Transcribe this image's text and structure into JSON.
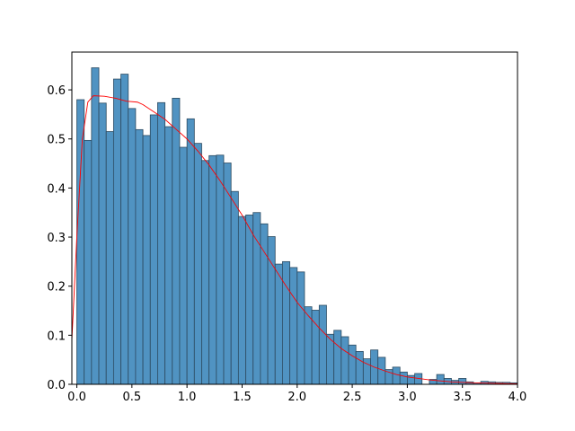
{
  "chart_data": {
    "type": "histogram",
    "bins": [
      0,
      0.0667,
      0.1333,
      0.2,
      0.2667,
      0.3333,
      0.4,
      0.4667,
      0.5333,
      0.6,
      0.6667,
      0.7333,
      0.8,
      0.8667,
      0.9333,
      1.0,
      1.0667,
      1.1333,
      1.2,
      1.2667,
      1.3333,
      1.4,
      1.4667,
      1.5333,
      1.6,
      1.6667,
      1.7333,
      1.8,
      1.8667,
      1.9333,
      2.0,
      2.0667,
      2.1333,
      2.2,
      2.2667,
      2.3333,
      2.4,
      2.4667,
      2.5333,
      2.6,
      2.6667,
      2.7333,
      2.8,
      2.8667,
      2.9333,
      3.0,
      3.0667,
      3.1333,
      3.2,
      3.2667,
      3.3333,
      3.4,
      3.4667,
      3.5333,
      3.6,
      3.6667,
      3.7333,
      3.8,
      3.8667,
      3.9333,
      4.0
    ],
    "values": [
      0.58,
      0.497,
      0.645,
      0.573,
      0.515,
      0.622,
      0.632,
      0.562,
      0.519,
      0.507,
      0.549,
      0.574,
      0.525,
      0.583,
      0.483,
      0.541,
      0.491,
      0.456,
      0.466,
      0.467,
      0.451,
      0.393,
      0.342,
      0.345,
      0.35,
      0.327,
      0.301,
      0.245,
      0.25,
      0.238,
      0.229,
      0.158,
      0.151,
      0.161,
      0.102,
      0.11,
      0.097,
      0.08,
      0.067,
      0.052,
      0.07,
      0.055,
      0.03,
      0.035,
      0.025,
      0.018,
      0.022,
      0,
      0.01,
      0.02,
      0.012,
      0.008,
      0.012,
      0.005,
      0.003,
      0.006,
      0.005,
      0.004,
      0.004,
      0.003
    ],
    "color": "#5093c2",
    "edgecolor": "#2d4b61",
    "kde": {
      "color": "#ff0000",
      "x": [
        -0.045,
        0.0,
        0.05,
        0.1,
        0.15,
        0.25,
        0.35,
        0.45,
        0.55,
        0.6,
        0.7,
        0.8,
        0.9,
        1.0,
        1.1,
        1.2,
        1.3,
        1.4,
        1.5,
        1.6,
        1.7,
        1.8,
        1.9,
        2.0,
        2.1,
        2.2,
        2.3,
        2.4,
        2.5,
        2.6,
        2.7,
        2.8,
        2.9,
        3.0,
        3.2,
        3.4,
        3.6,
        3.8,
        4.0
      ],
      "values": [
        0.09,
        0.3,
        0.5,
        0.575,
        0.588,
        0.587,
        0.583,
        0.577,
        0.575,
        0.57,
        0.555,
        0.54,
        0.52,
        0.5,
        0.475,
        0.447,
        0.415,
        0.38,
        0.345,
        0.305,
        0.27,
        0.235,
        0.2,
        0.167,
        0.14,
        0.115,
        0.092,
        0.073,
        0.058,
        0.045,
        0.035,
        0.027,
        0.02,
        0.015,
        0.009,
        0.005,
        0.003,
        0.002,
        0.001
      ]
    },
    "xlim": [
      -0.045,
      4.0
    ],
    "ylim": [
      0,
      0.677
    ],
    "xticks": [
      {
        "value": 0,
        "label": "0.0"
      },
      {
        "value": 0.5,
        "label": "0.5"
      },
      {
        "value": 1,
        "label": "1.0"
      },
      {
        "value": 1.5,
        "label": "1.5"
      },
      {
        "value": 2,
        "label": "2.0"
      },
      {
        "value": 2.5,
        "label": "2.5"
      },
      {
        "value": 3,
        "label": "3.0"
      },
      {
        "value": 3.5,
        "label": "3.5"
      },
      {
        "value": 4,
        "label": "4.0"
      }
    ],
    "yticks": [
      {
        "value": 0,
        "label": "0.0"
      },
      {
        "value": 0.1,
        "label": "0.1"
      },
      {
        "value": 0.2,
        "label": "0.2"
      },
      {
        "value": 0.3,
        "label": "0.3"
      },
      {
        "value": 0.4,
        "label": "0.4"
      },
      {
        "value": 0.5,
        "label": "0.5"
      },
      {
        "value": 0.6,
        "label": "0.6"
      }
    ]
  }
}
